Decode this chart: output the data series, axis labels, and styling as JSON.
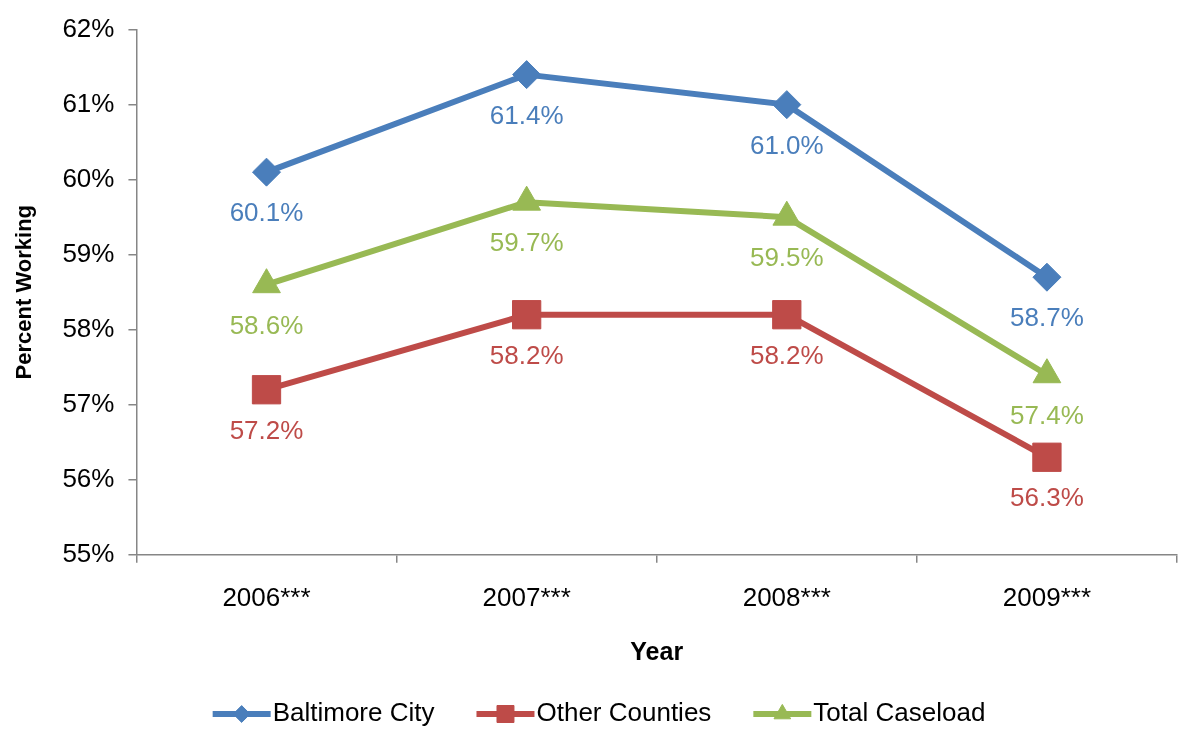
{
  "chart_data": {
    "type": "line",
    "xlabel": "Year",
    "ylabel": "Percent Working",
    "categories": [
      "2006***",
      "2007***",
      "2008***",
      "2009***"
    ],
    "series": [
      {
        "name": "Baltimore City",
        "color": "#4a7ebb",
        "marker": "diamond",
        "values": [
          60.1,
          61.4,
          61.0,
          58.7
        ],
        "value_labels": [
          "60.1%",
          "61.4%",
          "61.0%",
          "58.7%"
        ]
      },
      {
        "name": "Other Counties",
        "color": "#be4b48",
        "marker": "square",
        "values": [
          57.2,
          58.2,
          58.2,
          56.3
        ],
        "value_labels": [
          "57.2%",
          "58.2%",
          "58.2%",
          "56.3%"
        ]
      },
      {
        "name": "Total Caseload",
        "color": "#98b954",
        "marker": "triangle",
        "values": [
          58.6,
          59.7,
          59.5,
          57.4
        ],
        "value_labels": [
          "58.6%",
          "59.7%",
          "59.5%",
          "57.4%"
        ]
      }
    ],
    "ylim": [
      55,
      62
    ],
    "yticks": [
      {
        "value": 55,
        "label": "55%"
      },
      {
        "value": 56,
        "label": "56%"
      },
      {
        "value": 57,
        "label": "57%"
      },
      {
        "value": 58,
        "label": "58%"
      },
      {
        "value": 59,
        "label": "59%"
      },
      {
        "value": 60,
        "label": "60%"
      },
      {
        "value": 61,
        "label": "61%"
      },
      {
        "value": 62,
        "label": "62%"
      }
    ],
    "legend": "bottom",
    "line_style": "solid"
  }
}
